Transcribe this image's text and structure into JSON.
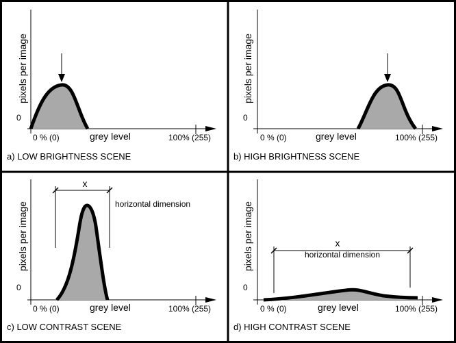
{
  "panels": [
    {
      "id": "a",
      "y_label": "pixels per image",
      "zero_label": "0",
      "x_start_label": "0 % (0)",
      "x_mid_label": "grey level",
      "x_end_label": "100% (255)",
      "caption": "a) LOW BRIGHTNESS SCENE"
    },
    {
      "id": "b",
      "y_label": "pixels per image",
      "zero_label": "0",
      "x_start_label": "0 % (0)",
      "x_mid_label": "grey level",
      "x_end_label": "100% (255)",
      "caption": "b) HIGH BRIGHTNESS SCENE"
    },
    {
      "id": "c",
      "y_label": "pixels per image",
      "zero_label": "0",
      "x_start_label": "0 % (0)",
      "x_mid_label": "grey level",
      "x_end_label": "100% (255)",
      "caption": "c) LOW CONTRAST SCENE",
      "dimension_symbol": "x",
      "dimension_text": "horizontal dimension"
    },
    {
      "id": "d",
      "y_label": "pixels per image",
      "zero_label": "0",
      "x_start_label": "0 % (0)",
      "x_mid_label": "grey level",
      "x_end_label": "100% (255)",
      "caption": "d) HIGH CONTRAST SCENE",
      "dimension_symbol": "x",
      "dimension_text": "horizontal dimension"
    }
  ],
  "colors": {
    "fill": "#a9a9a9",
    "stroke": "#000000"
  }
}
